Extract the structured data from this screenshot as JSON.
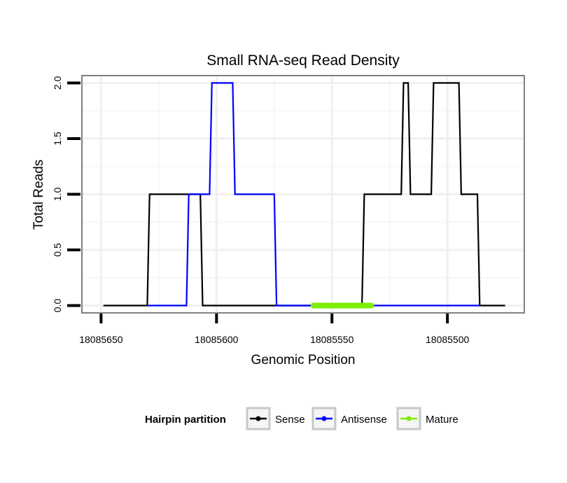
{
  "chart_data": {
    "type": "line",
    "title": "Small RNA-seq Read Density",
    "xlabel": "Genomic Position",
    "ylabel": "Total Reads",
    "x_reversed": true,
    "xlim": [
      18085658,
      18085467
    ],
    "ylim": [
      -0.06,
      2.06
    ],
    "x_ticks": [
      18085650,
      18085600,
      18085550,
      18085500
    ],
    "x_tick_labels": [
      "18085650",
      "18085600",
      "18085550",
      "18085500"
    ],
    "y_ticks": [
      0,
      0.5,
      1,
      1.5,
      2
    ],
    "y_tick_labels": [
      "0.0",
      "0.5",
      "1.0",
      "1.5",
      "2.0"
    ],
    "grid": true,
    "legend": {
      "title": "Hairpin partition",
      "position": "bottom",
      "entries": [
        "Sense",
        "Antisense",
        "Mature"
      ]
    },
    "series": [
      {
        "name": "Sense",
        "color": "#000000",
        "x": [
          18085649,
          18085630,
          18085629,
          18085607,
          18085606,
          18085537,
          18085536,
          18085520,
          18085519,
          18085517,
          18085516,
          18085507,
          18085506,
          18085495,
          18085494,
          18085487,
          18085486,
          18085475
        ],
        "y": [
          0,
          0,
          1,
          1,
          0,
          0,
          1,
          1,
          2,
          2,
          1,
          1,
          2,
          2,
          1,
          1,
          0,
          0
        ]
      },
      {
        "name": "Antisense",
        "color": "#0000ff",
        "x": [
          18085630,
          18085613,
          18085612,
          18085603,
          18085602,
          18085593,
          18085592,
          18085575,
          18085574,
          18085558,
          18085537,
          18085486
        ],
        "y": [
          0,
          0,
          1,
          1,
          2,
          2,
          1,
          1,
          0,
          0,
          0,
          0
        ]
      },
      {
        "name": "Mature",
        "color": "#7cee00",
        "x": [
          18085558,
          18085533
        ],
        "y": [
          0,
          0
        ]
      }
    ]
  }
}
